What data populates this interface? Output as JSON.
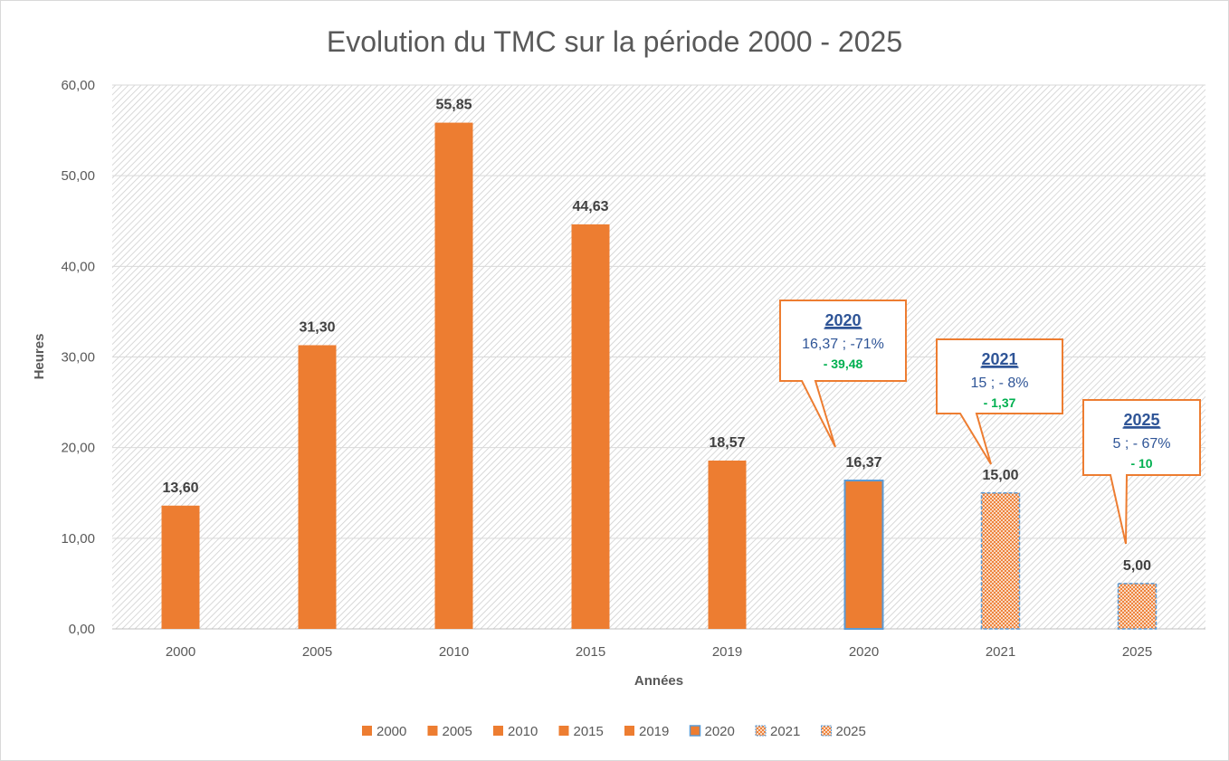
{
  "chart_data": {
    "type": "bar",
    "title": "Evolution du TMC sur la période 2000 - 2025",
    "xlabel": "Années",
    "ylabel": "Heures",
    "ylim": [
      0,
      60
    ],
    "ytick_step": 10,
    "ytick_labels": [
      "0,00",
      "10,00",
      "20,00",
      "30,00",
      "40,00",
      "50,00",
      "60,00"
    ],
    "grid": true,
    "legend_position": "bottom",
    "categories": [
      "2000",
      "2005",
      "2010",
      "2015",
      "2019",
      "2020",
      "2021",
      "2025"
    ],
    "values": [
      13.6,
      31.3,
      55.85,
      44.63,
      18.57,
      16.37,
      15.0,
      5.0
    ],
    "value_labels": [
      "13,60",
      "31,30",
      "55,85",
      "44,63",
      "18,57",
      "16,37",
      "15,00",
      "5,00"
    ],
    "bar_styles": [
      "solid",
      "solid",
      "solid",
      "solid",
      "solid",
      "solid-outlined",
      "pattern-dashed",
      "pattern-dashed"
    ],
    "legend": [
      "2000",
      "2005",
      "2010",
      "2015",
      "2019",
      "2020",
      "2021",
      "2025"
    ],
    "callouts": [
      {
        "category": "2020",
        "title": "2020",
        "line1": "16,37 ; -71%",
        "line2": "- 39,48"
      },
      {
        "category": "2021",
        "title": "2021",
        "line1": "15 ; - 8%",
        "line2": "- 1,37"
      },
      {
        "category": "2025",
        "title": "2025",
        "line1": "5 ; - 67%",
        "line2": "- 10"
      }
    ],
    "colors": {
      "bar": "#ed7d31",
      "bar_outline": "#5b9bd5",
      "callout_border": "#ed7d31",
      "callout_title": "#2f5597",
      "callout_text": "#2f5597",
      "callout_delta": "#00b050",
      "axis_text": "#595959",
      "title": "#595959",
      "grid": "#d9d9d9"
    }
  }
}
